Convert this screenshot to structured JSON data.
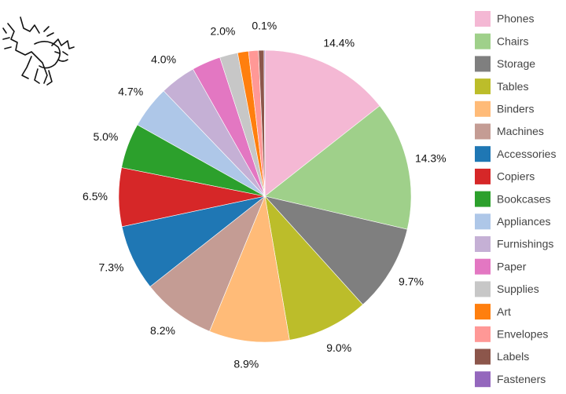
{
  "chart_data": {
    "type": "pie",
    "title": "",
    "categories": [
      "Phones",
      "Chairs",
      "Storage",
      "Tables",
      "Binders",
      "Machines",
      "Accessories",
      "Copiers",
      "Bookcases",
      "Appliances",
      "Furnishings",
      "Paper",
      "Supplies",
      "Art",
      "Envelopes",
      "Labels",
      "Fasteners"
    ],
    "values": [
      14.4,
      14.3,
      9.7,
      9.0,
      8.9,
      8.2,
      7.3,
      6.5,
      5.0,
      4.7,
      4.0,
      3.2,
      2.0,
      1.2,
      1.1,
      0.6,
      0.1
    ],
    "value_labels": [
      "14.4%",
      "14.3%",
      "9.7%",
      "9.0%",
      "8.9%",
      "8.2%",
      "7.3%",
      "6.5%",
      "5.0%",
      "4.7%",
      "4.0%",
      "",
      "2.0%",
      "",
      "",
      "",
      "0.1%"
    ],
    "colors": [
      "#f4b8d4",
      "#9fd08a",
      "#7f7f7f",
      "#bcbd2a",
      "#ffbb78",
      "#c49c94",
      "#1f77b4",
      "#d62728",
      "#2ca02c",
      "#aec7e8",
      "#c5b0d5",
      "#e377c2",
      "#c7c7c7",
      "#ff7f0e",
      "#ff9896",
      "#8c564b",
      "#9467bd"
    ],
    "start_angle": "top (12 o'clock)",
    "direction": "clockwise",
    "legend": {
      "placement": "right"
    }
  },
  "decoration": {
    "icon": "scared-cat-icon"
  }
}
